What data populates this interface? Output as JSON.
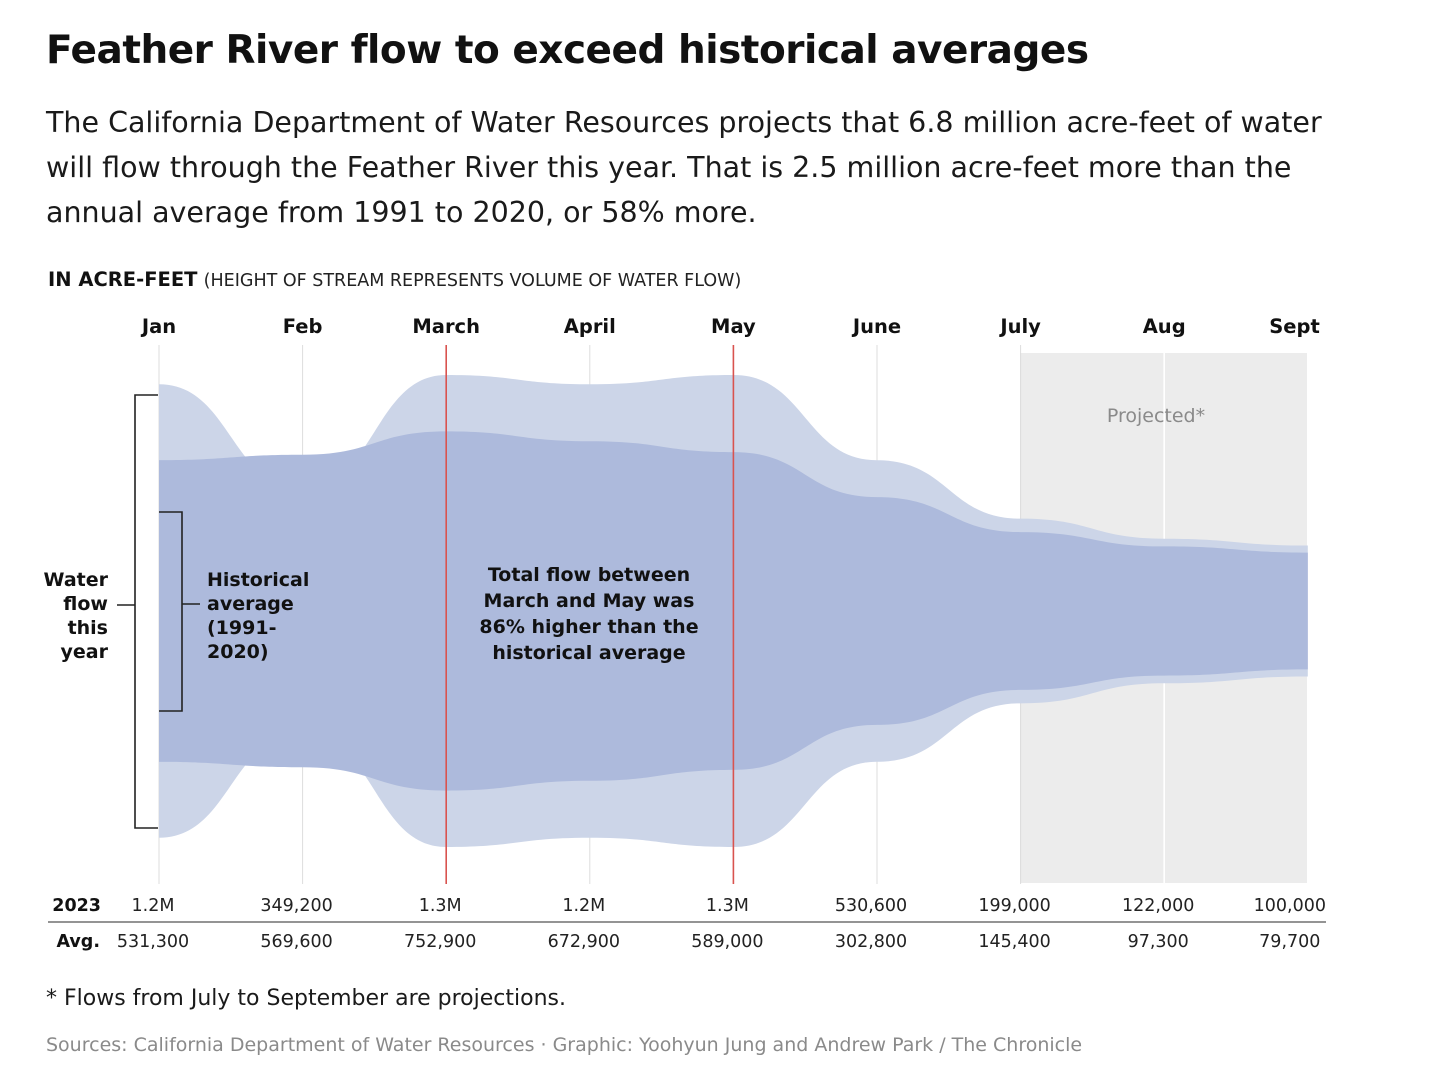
{
  "header": {
    "title": "Feather River flow to exceed historical averages",
    "subtitle": "The California Department of Water Resources projects that 6.8 million acre-feet of water will flow through the Feather River this year. That is 2.5 million acre-feet more than the annual average from 1991 to 2020, or 58% more.",
    "unit_label": "IN ACRE-FEET",
    "unit_note": "(HEIGHT OF STREAM REPRESENTS VOLUME OF WATER FLOW)"
  },
  "chart_data": {
    "type": "area",
    "style": "streamgraph",
    "categories": [
      "Jan",
      "Feb",
      "March",
      "April",
      "May",
      "June",
      "July",
      "Aug",
      "Sept"
    ],
    "series": [
      {
        "name": "2023",
        "values": [
          1200000,
          349200,
          1300000,
          1200000,
          1300000,
          530600,
          199000,
          122000,
          100000
        ],
        "display": [
          "1.2M",
          "349,200",
          "1.3M",
          "1.2M",
          "1.3M",
          "530,600",
          "199,000",
          "122,000",
          "100,000"
        ]
      },
      {
        "name": "Avg.",
        "values": [
          531300,
          569600,
          752900,
          672900,
          589000,
          302800,
          145400,
          97300,
          79700
        ],
        "display": [
          "531,300",
          "569,600",
          "752,900",
          "672,900",
          "589,000",
          "302,800",
          "145,400",
          "97,300",
          "79,700"
        ]
      }
    ],
    "projected_range": [
      "July",
      "Sept"
    ],
    "projected_label": "Projected*",
    "highlight_months": [
      "March",
      "May"
    ],
    "annotations": {
      "this_year": "Water flow this year",
      "historical": "Historical average (1991-2020)",
      "center": "Total flow between March and May was 86% higher than the historical average"
    },
    "colors": {
      "this_year": "#ccd5e8",
      "average": "#adbadc",
      "highlight": "#d9534f",
      "projected_bg": "#ececec",
      "grid": "#dddddd"
    },
    "grid": true
  },
  "footer": {
    "footnote": "* Flows from July to September are projections.",
    "sources": "Sources: California Department of Water Resources · Graphic: Yoohyun Jung and Andrew Park / The Chronicle"
  }
}
